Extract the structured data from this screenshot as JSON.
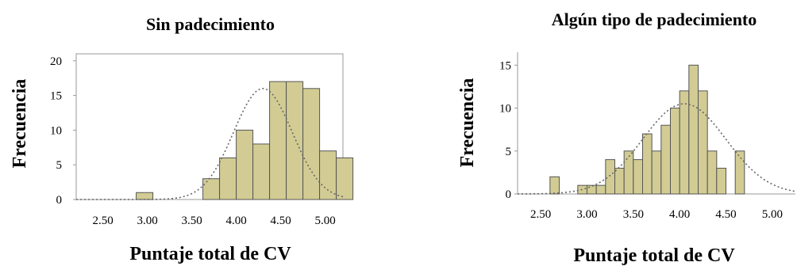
{
  "chart_data": [
    {
      "type": "bar",
      "title": "Sin padecimiento",
      "xlabel": "Puntaje total de CV",
      "ylabel": "Frecuencia",
      "x_ticks": [
        "2.50",
        "3.00",
        "3.50",
        "4.00",
        "4.50",
        "5.00"
      ],
      "y_ticks": [
        "0",
        "5",
        "10",
        "15",
        "20"
      ],
      "xlim": [
        2.2,
        5.2
      ],
      "ylim": [
        0,
        21
      ],
      "bin_width": 0.1875,
      "bins": [
        {
          "x_start": 2.875,
          "value": 1
        },
        {
          "x_start": 3.625,
          "value": 3
        },
        {
          "x_start": 3.8125,
          "value": 6
        },
        {
          "x_start": 4.0,
          "value": 10
        },
        {
          "x_start": 4.1875,
          "value": 8
        },
        {
          "x_start": 4.375,
          "value": 17
        },
        {
          "x_start": 4.5625,
          "value": 17
        },
        {
          "x_start": 4.75,
          "value": 16
        },
        {
          "x_start": 4.9375,
          "value": 7
        },
        {
          "x_start": 5.125,
          "value": 6
        }
      ],
      "normal_curve": {
        "mean": 4.3,
        "sd": 0.33,
        "peak": 16
      },
      "grid": false
    },
    {
      "type": "bar",
      "title": "Algún tipo de padecimiento",
      "xlabel": "Puntaje total de CV",
      "ylabel": "Frecuencia",
      "x_ticks": [
        "2.50",
        "3.00",
        "3.50",
        "4.00",
        "4.50",
        "5.00"
      ],
      "y_ticks": [
        "0",
        "5",
        "10",
        "15"
      ],
      "xlim": [
        2.25,
        5.25
      ],
      "ylim": [
        0,
        16.5
      ],
      "bin_width": 0.1,
      "bins": [
        {
          "x_start": 2.6,
          "value": 2
        },
        {
          "x_start": 2.9,
          "value": 1
        },
        {
          "x_start": 3.0,
          "value": 1
        },
        {
          "x_start": 3.1,
          "value": 1
        },
        {
          "x_start": 3.2,
          "value": 4
        },
        {
          "x_start": 3.3,
          "value": 3
        },
        {
          "x_start": 3.4,
          "value": 5
        },
        {
          "x_start": 3.5,
          "value": 4
        },
        {
          "x_start": 3.6,
          "value": 7
        },
        {
          "x_start": 3.7,
          "value": 5
        },
        {
          "x_start": 3.8,
          "value": 8
        },
        {
          "x_start": 3.9,
          "value": 10
        },
        {
          "x_start": 4.0,
          "value": 12
        },
        {
          "x_start": 4.1,
          "value": 15
        },
        {
          "x_start": 4.2,
          "value": 12
        },
        {
          "x_start": 4.3,
          "value": 5
        },
        {
          "x_start": 4.4,
          "value": 3
        },
        {
          "x_start": 4.6,
          "value": 5
        }
      ],
      "normal_curve": {
        "mean": 4.05,
        "sd": 0.45,
        "peak": 10.5
      },
      "grid": false
    }
  ]
}
